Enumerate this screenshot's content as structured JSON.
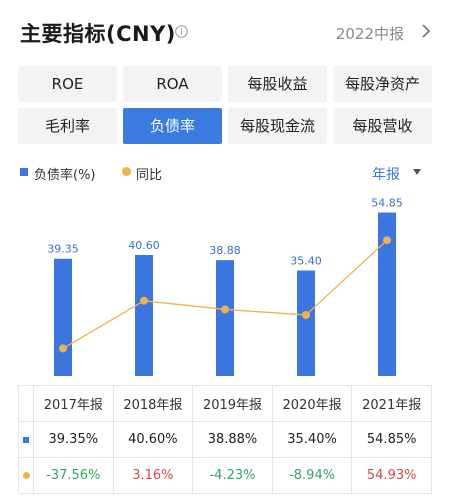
{
  "header": {
    "title": "主要指标(CNY)",
    "period": "2022中报"
  },
  "metrics": [
    "ROE",
    "ROA",
    "每股收益",
    "每股净资产",
    "毛利率",
    "负债率",
    "每股现金流",
    "每股营收"
  ],
  "active_metric": "负债率",
  "legend": {
    "series1": "负债率(%)",
    "series2": "同比"
  },
  "period_selector": "年报",
  "colors": {
    "bar": "#3a75e0",
    "line": "#f2b24a",
    "accent": "#3a7be0",
    "positive": "#e0454a",
    "negative": "#2faa5c"
  },
  "chart_data": {
    "type": "bar",
    "categories": [
      "2017年报",
      "2018年报",
      "2019年报",
      "2020年报",
      "2021年报"
    ],
    "series": [
      {
        "name": "负债率(%)",
        "type": "bar",
        "values": [
          39.35,
          40.6,
          38.88,
          35.4,
          54.85
        ]
      },
      {
        "name": "同比",
        "type": "line",
        "values": [
          -37.56,
          3.16,
          -4.23,
          -8.94,
          54.93
        ]
      }
    ],
    "bar_labels": [
      "39.35",
      "40.60",
      "38.88",
      "35.40",
      "54.85"
    ]
  },
  "table": {
    "headers": [
      "2017年报",
      "2018年报",
      "2019年报",
      "2020年报",
      "2021年报"
    ],
    "row1": [
      "39.35%",
      "40.60%",
      "38.88%",
      "35.40%",
      "54.85%"
    ],
    "row2": [
      "-37.56%",
      "3.16%",
      "-4.23%",
      "-8.94%",
      "54.93%"
    ]
  }
}
